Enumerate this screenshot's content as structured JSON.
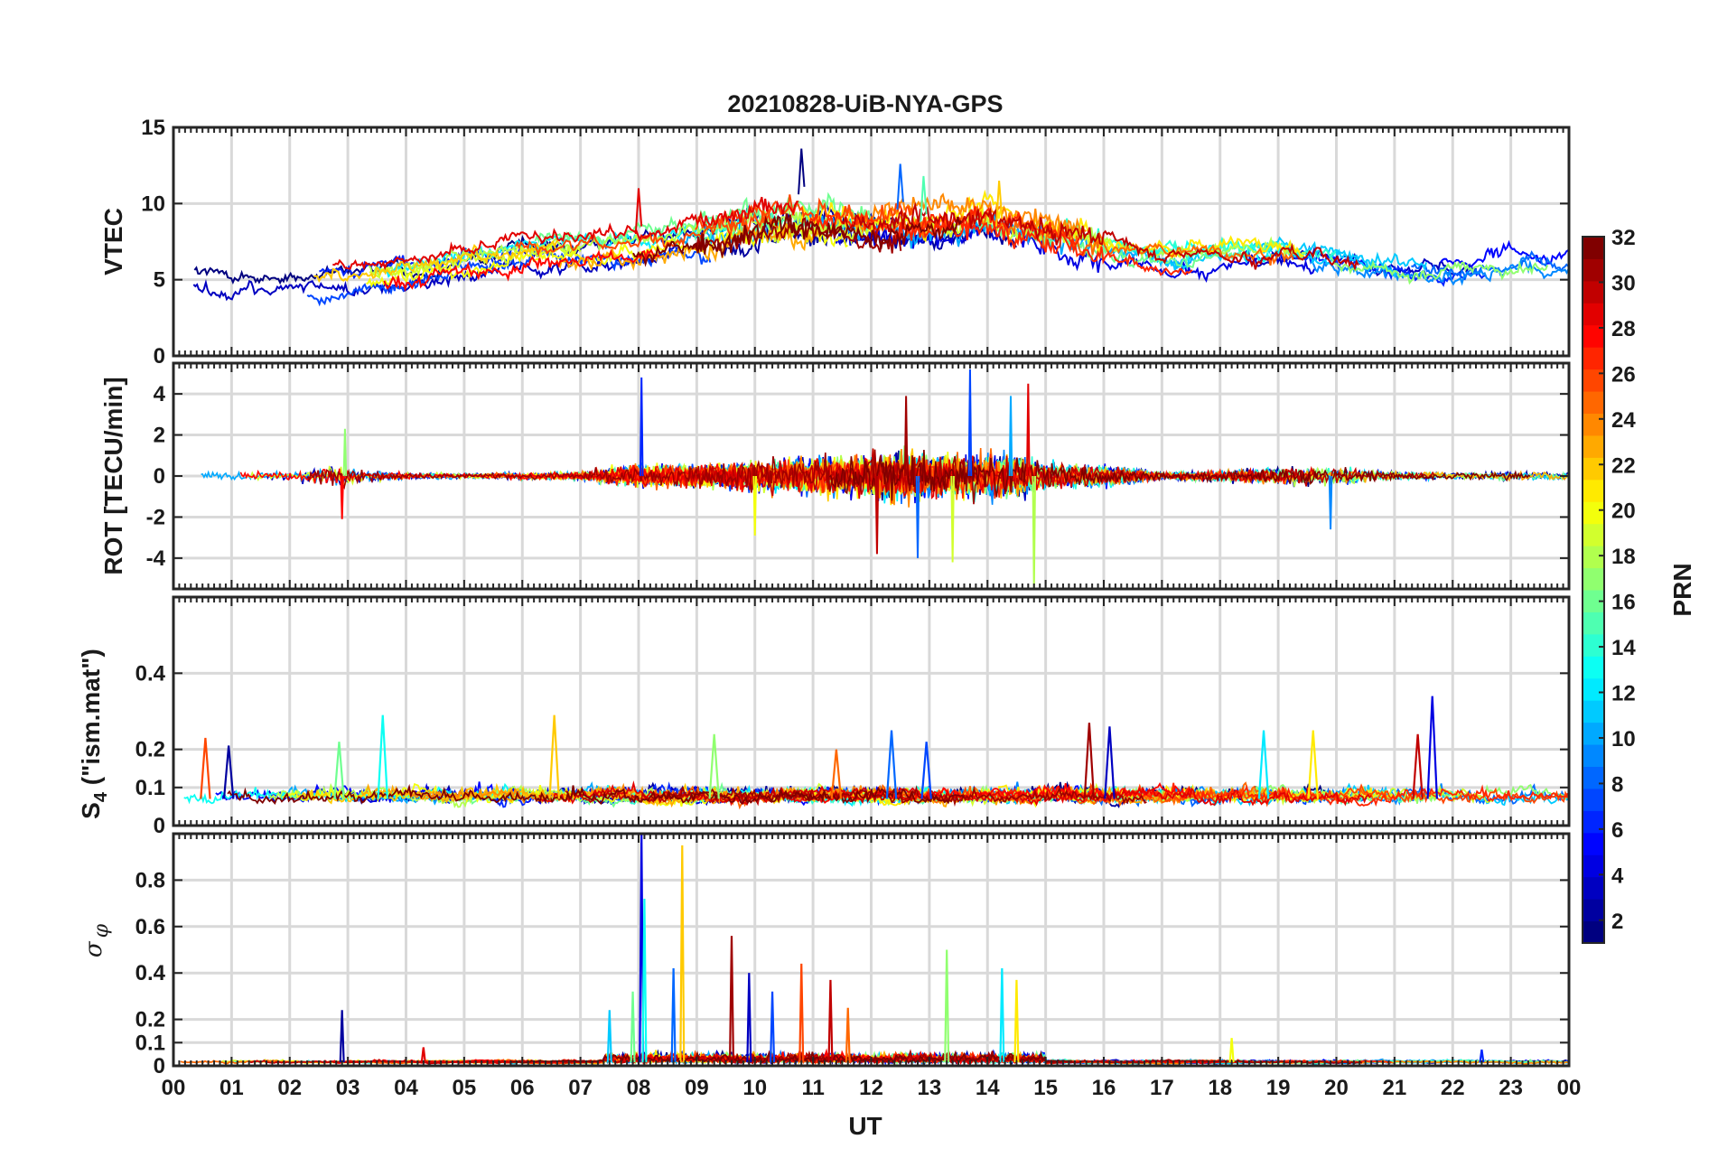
{
  "chart_data": {
    "type": "line",
    "title": "20210828-UiB-NYA-GPS",
    "xlabel": "UT",
    "x_unit": "hours UT",
    "xlim": [
      0,
      24
    ],
    "x_tick_labels": [
      "00",
      "01",
      "02",
      "03",
      "04",
      "05",
      "06",
      "07",
      "08",
      "09",
      "10",
      "11",
      "12",
      "13",
      "14",
      "15",
      "16",
      "17",
      "18",
      "19",
      "20",
      "21",
      "22",
      "23",
      "00"
    ],
    "grid": true,
    "panels": [
      {
        "ylabel": "VTEC",
        "ylim": [
          0,
          15
        ],
        "y_ticks": [
          0,
          5,
          10,
          15
        ],
        "activity": [
          {
            "x_range": [
              0,
              24
            ],
            "level": 6.5,
            "note": "diurnal envelope"
          }
        ],
        "envelope_x": [
          0,
          1,
          2,
          3,
          4,
          5,
          6,
          7,
          8,
          9,
          10,
          11,
          12,
          13,
          14,
          15,
          16,
          17,
          18,
          19,
          20,
          21,
          22,
          23,
          24
        ],
        "envelope_y": [
          5.5,
          5.2,
          5.0,
          5.2,
          5.6,
          6.3,
          6.8,
          7.0,
          7.2,
          7.8,
          8.6,
          8.9,
          8.4,
          8.8,
          9.0,
          8.2,
          7.5,
          6.5,
          6.8,
          6.9,
          6.5,
          6.0,
          5.8,
          6.3,
          6.2
        ],
        "peaks": [
          {
            "x": 10.8,
            "y": 13.6
          },
          {
            "x": 12.5,
            "y": 12.6
          },
          {
            "x": 12.9,
            "y": 11.8
          },
          {
            "x": 14.2,
            "y": 11.5
          },
          {
            "x": 8.0,
            "y": 11.0
          }
        ]
      },
      {
        "ylabel": "ROT [TECU/min]",
        "ylim": [
          -5.5,
          5.5
        ],
        "y_ticks": [
          -4,
          -2,
          0,
          2,
          4
        ],
        "activity_x": [
          0,
          1,
          2,
          2.8,
          3.2,
          4,
          5,
          6,
          7,
          7.5,
          8,
          9,
          10,
          11,
          12,
          12.5,
          13,
          14,
          14.5,
          15,
          16,
          16.5,
          17,
          18,
          19,
          20,
          21,
          22,
          23,
          24
        ],
        "activity_amp": [
          0.5,
          0.5,
          0.3,
          1.2,
          0.6,
          0.3,
          0.25,
          0.3,
          0.4,
          0.8,
          1.2,
          1.0,
          1.5,
          1.8,
          2.0,
          2.5,
          2.2,
          2.0,
          2.3,
          1.2,
          1.0,
          0.7,
          0.3,
          0.5,
          0.8,
          0.8,
          0.4,
          0.3,
          0.4,
          0.4
        ],
        "spikes": [
          {
            "x": 8.05,
            "y": 4.8
          },
          {
            "x": 2.95,
            "y": 2.3
          },
          {
            "x": 2.9,
            "y": -2.1
          },
          {
            "x": 13.7,
            "y": 5.2
          },
          {
            "x": 14.8,
            "y": -5.5
          },
          {
            "x": 14.7,
            "y": 4.5
          },
          {
            "x": 12.8,
            "y": -4.0
          },
          {
            "x": 13.4,
            "y": -4.2
          },
          {
            "x": 12.1,
            "y": -3.8
          },
          {
            "x": 19.9,
            "y": -2.6
          },
          {
            "x": 10.0,
            "y": -2.9
          },
          {
            "x": 12.6,
            "y": 3.9
          },
          {
            "x": 14.4,
            "y": 3.9
          }
        ]
      },
      {
        "ylabel": "S4 (\"ism.mat\")",
        "ylabel_main": "S",
        "ylabel_sub": "4",
        "ylabel_rest": " (\"ism.mat\")",
        "ylim": [
          0,
          0.6
        ],
        "y_ticks": [
          0,
          0.1,
          0.2,
          0.4
        ],
        "baseline": 0.07,
        "spikes": [
          {
            "x": 21.65,
            "y": 0.34
          },
          {
            "x": 3.6,
            "y": 0.29
          },
          {
            "x": 6.55,
            "y": 0.29
          },
          {
            "x": 15.75,
            "y": 0.27
          },
          {
            "x": 12.35,
            "y": 0.25
          },
          {
            "x": 9.3,
            "y": 0.24
          },
          {
            "x": 0.55,
            "y": 0.23
          },
          {
            "x": 16.1,
            "y": 0.26
          },
          {
            "x": 18.75,
            "y": 0.25
          },
          {
            "x": 19.6,
            "y": 0.25
          },
          {
            "x": 21.4,
            "y": 0.24
          },
          {
            "x": 12.95,
            "y": 0.22
          },
          {
            "x": 2.85,
            "y": 0.22
          },
          {
            "x": 11.4,
            "y": 0.2
          },
          {
            "x": 0.95,
            "y": 0.21
          }
        ]
      },
      {
        "ylabel": "σφ",
        "ylabel_main": "σ",
        "ylabel_sub": "φ",
        "ylim": [
          0,
          1.0
        ],
        "y_ticks": [
          0,
          0.1,
          0.2,
          0.4,
          0.6,
          0.8
        ],
        "baseline": 0.015,
        "spikes": [
          {
            "x": 8.05,
            "y": 1.0
          },
          {
            "x": 8.1,
            "y": 0.72
          },
          {
            "x": 8.75,
            "y": 0.95
          },
          {
            "x": 9.6,
            "y": 0.56
          },
          {
            "x": 8.6,
            "y": 0.42
          },
          {
            "x": 13.3,
            "y": 0.5
          },
          {
            "x": 10.8,
            "y": 0.44
          },
          {
            "x": 9.9,
            "y": 0.4
          },
          {
            "x": 14.25,
            "y": 0.42
          },
          {
            "x": 14.5,
            "y": 0.37
          },
          {
            "x": 11.3,
            "y": 0.37
          },
          {
            "x": 10.3,
            "y": 0.32
          },
          {
            "x": 7.9,
            "y": 0.32
          },
          {
            "x": 11.6,
            "y": 0.25
          },
          {
            "x": 2.9,
            "y": 0.24
          },
          {
            "x": 7.5,
            "y": 0.24
          },
          {
            "x": 18.2,
            "y": 0.12
          },
          {
            "x": 4.3,
            "y": 0.08
          },
          {
            "x": 22.5,
            "y": 0.07
          }
        ]
      }
    ],
    "colorbar": {
      "label": "PRN",
      "range": [
        1,
        32
      ],
      "ticks": [
        "2",
        "4",
        "6",
        "8",
        "10",
        "12",
        "14",
        "16",
        "18",
        "20",
        "22",
        "24",
        "26",
        "28",
        "30",
        "32"
      ],
      "colormap": "jet",
      "placement": "right"
    },
    "series_count": 32
  }
}
